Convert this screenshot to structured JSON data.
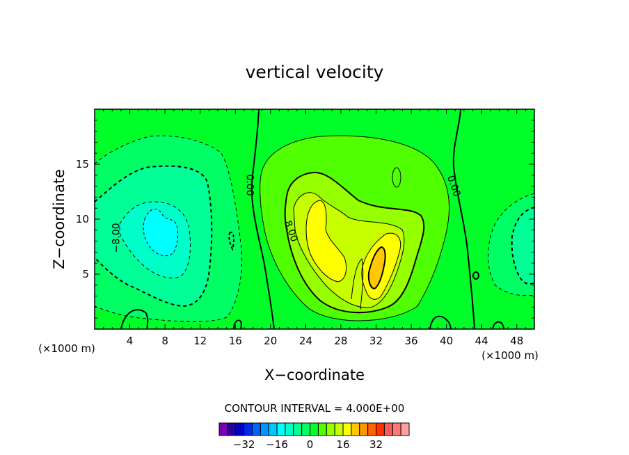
{
  "chart_data": {
    "type": "heatmap",
    "title": "vertical velocity",
    "xlabel": "X−coordinate",
    "ylabel": "Z−coordinate",
    "x_unit_left": "(×1000 m)",
    "x_unit_right": "(×1000 m)",
    "xlim": [
      0,
      50
    ],
    "ylim": [
      0,
      20
    ],
    "x_ticks": [
      4,
      8,
      12,
      16,
      20,
      24,
      28,
      32,
      36,
      40,
      44,
      48
    ],
    "y_ticks": [
      5,
      10,
      15
    ],
    "contour_interval_label": "CONTOUR INTERVAL = 4.000E+00",
    "contour_labels": [
      {
        "text": "−8.00",
        "x": 2.5,
        "y": 8.3,
        "angle": -90
      },
      {
        "text": "0.00",
        "x": 17.6,
        "y": 13.1,
        "angle": 90
      },
      {
        "text": "8.00",
        "x": 22.3,
        "y": 8.9,
        "angle": 70
      },
      {
        "text": "0.00",
        "x": 40.8,
        "y": 13.0,
        "angle": 70
      }
    ],
    "colorbar": {
      "colors": [
        "#7b00b4",
        "#2800a0",
        "#0000c8",
        "#0028f0",
        "#0064ff",
        "#0096ff",
        "#00c8ff",
        "#00ffff",
        "#00ffc8",
        "#00ff96",
        "#00ff64",
        "#00ff28",
        "#50ff00",
        "#96ff00",
        "#c8ff00",
        "#ffff00",
        "#ffc800",
        "#ff9600",
        "#ff6400",
        "#ff3200",
        "#ff5a5a",
        "#ff7878",
        "#ffa0a0"
      ],
      "tick_labels": [
        "−32",
        "−16",
        "0",
        "16",
        "32"
      ],
      "tick_values": [
        -32,
        -16,
        0,
        16,
        32
      ],
      "vmin": -44,
      "vmax": 48
    },
    "features": [
      {
        "name": "downdraft-left",
        "center": [
          7,
          9
        ],
        "min": -16
      },
      {
        "name": "updraft-center",
        "center": [
          31,
          8
        ],
        "max": 20
      },
      {
        "name": "downdraft-right",
        "center": [
          47,
          7
        ],
        "min": -12
      }
    ]
  }
}
